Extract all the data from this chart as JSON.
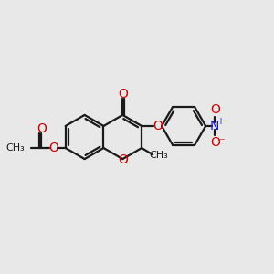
{
  "bg_color": "#e8e8e8",
  "bond_color": "#1a1a1a",
  "oxygen_color": "#cc0000",
  "nitrogen_color": "#1a1acc",
  "bond_width": 1.6,
  "fig_size": [
    3.0,
    3.0
  ],
  "dpi": 100,
  "xlim": [
    0,
    12
  ],
  "ylim": [
    0,
    10
  ]
}
